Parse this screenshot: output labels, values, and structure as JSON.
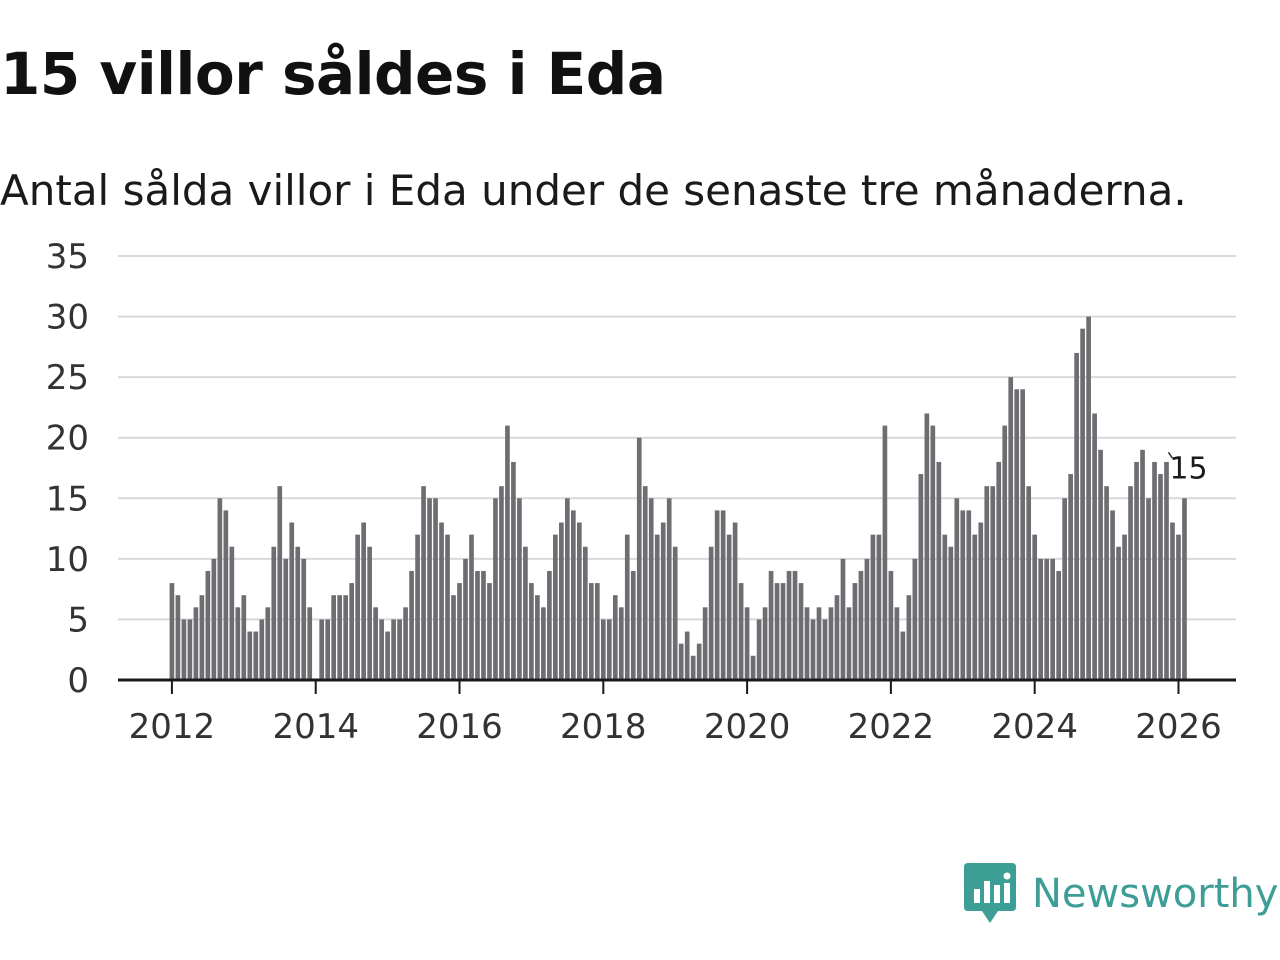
{
  "title": "15 villor såldes i Eda",
  "subtitle": "Antal sålda villor i Eda under de senaste tre månaderna.",
  "brand": {
    "name": "Newsworthy",
    "icon": "newsworthy-logo-icon",
    "color": "#3d9e96"
  },
  "colors": {
    "bar": "#6e6d72",
    "highlight": "#21a192",
    "grid": "#d9d9d9",
    "axis": "#1a1a1a",
    "tick_label": "#333333"
  },
  "chart_data": {
    "type": "bar",
    "title": "15 villor såldes i Eda",
    "subtitle": "Antal sålda villor i Eda under de senaste tre månaderna.",
    "xlabel": "",
    "ylabel": "",
    "ylim": [
      0,
      35
    ],
    "yticks": [
      0,
      5,
      10,
      15,
      20,
      25,
      30,
      35
    ],
    "xticks": [
      2012,
      2014,
      2016,
      2018,
      2020,
      2022,
      2024,
      2026
    ],
    "xlim": [
      2011.25,
      2026.8
    ],
    "grid": true,
    "x_start": 2012.0,
    "x_step_months": 1,
    "values": [
      8,
      7,
      5,
      5,
      6,
      7,
      9,
      10,
      15,
      14,
      11,
      6,
      7,
      4,
      4,
      5,
      6,
      11,
      16,
      10,
      13,
      11,
      10,
      6,
      0,
      5,
      5,
      7,
      7,
      7,
      8,
      12,
      13,
      11,
      6,
      5,
      4,
      5,
      5,
      6,
      9,
      12,
      16,
      15,
      15,
      13,
      12,
      7,
      8,
      10,
      12,
      9,
      9,
      8,
      15,
      16,
      21,
      18,
      15,
      11,
      8,
      7,
      6,
      9,
      12,
      13,
      15,
      14,
      13,
      11,
      8,
      8,
      5,
      5,
      7,
      6,
      12,
      9,
      20,
      16,
      15,
      12,
      13,
      15,
      11,
      3,
      4,
      2,
      3,
      6,
      11,
      14,
      14,
      12,
      13,
      8,
      6,
      2,
      5,
      6,
      9,
      8,
      8,
      9,
      9,
      8,
      6,
      5,
      6,
      5,
      6,
      7,
      10,
      6,
      8,
      9,
      10,
      12,
      12,
      21,
      9,
      6,
      4,
      7,
      10,
      17,
      22,
      21,
      18,
      12,
      11,
      15,
      14,
      14,
      12,
      13,
      16,
      16,
      18,
      21,
      25,
      24,
      24,
      16,
      12,
      10,
      10,
      10,
      9,
      15,
      17,
      27,
      29,
      30,
      22,
      19,
      16,
      14,
      11,
      12,
      16,
      18,
      19,
      15,
      18,
      17,
      18,
      13,
      12,
      15
    ],
    "highlight": {
      "index": 170,
      "value": 15,
      "label": "15"
    }
  }
}
